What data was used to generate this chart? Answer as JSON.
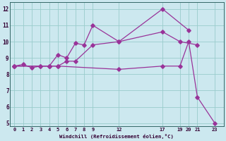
{
  "xlabel": "Windchill (Refroidissement éolien,°C)",
  "background_color": "#cce8ef",
  "grid_color": "#99cccc",
  "line_color": "#993399",
  "line1_x": [
    0,
    1,
    2,
    3,
    4,
    5,
    6,
    7,
    8,
    9,
    12,
    17,
    20
  ],
  "line1_y": [
    8.5,
    8.6,
    8.4,
    8.5,
    8.5,
    9.2,
    9.0,
    9.9,
    9.8,
    11.0,
    10.0,
    12.0,
    10.7
  ],
  "line2_x": [
    0,
    3,
    4,
    5,
    6,
    7,
    9,
    12,
    17,
    19,
    21
  ],
  "line2_y": [
    8.5,
    8.5,
    8.5,
    8.5,
    8.8,
    8.8,
    9.8,
    10.0,
    10.6,
    10.0,
    9.8
  ],
  "line3_x": [
    0,
    4,
    5,
    12,
    17,
    19,
    20,
    21,
    23
  ],
  "line3_y": [
    8.5,
    8.5,
    8.5,
    8.3,
    8.5,
    8.5,
    10.0,
    6.6,
    5.0
  ],
  "xlim": [
    -0.5,
    24
  ],
  "ylim": [
    4.8,
    12.4
  ],
  "xticks": [
    0,
    1,
    2,
    3,
    4,
    5,
    6,
    7,
    8,
    9,
    12,
    17,
    19,
    20,
    21,
    23
  ],
  "yticks": [
    5,
    6,
    7,
    8,
    9,
    10,
    11,
    12
  ],
  "figsize": [
    3.2,
    2.0
  ],
  "dpi": 100
}
